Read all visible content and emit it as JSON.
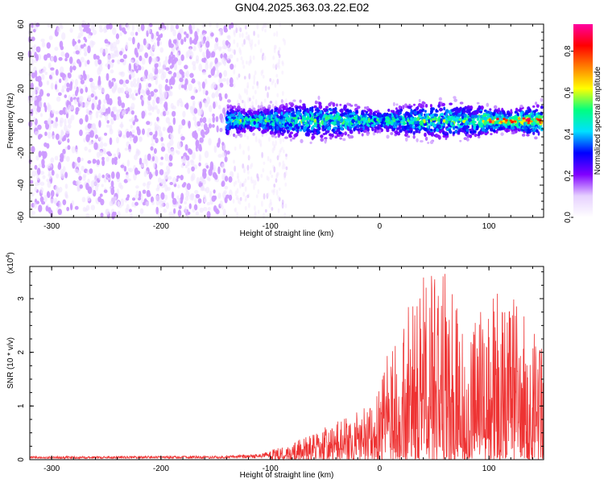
{
  "title": "GN04.2025.363.03.22.E02",
  "chart_data": [
    {
      "type": "heatmap",
      "xlabel": "Height of straight line (km)",
      "ylabel": "Frequency (Hz)",
      "xlim": [
        -320,
        150
      ],
      "ylim": [
        -60,
        60
      ],
      "xticks": [
        -300,
        -200,
        -100,
        0,
        100
      ],
      "yticks": [
        -60,
        -40,
        -20,
        0,
        20,
        40,
        60
      ],
      "colorbar": {
        "label": "Normalized spectral amplitude",
        "range": [
          0.0,
          0.93
        ],
        "ticks": [
          0.0,
          0.2,
          0.4,
          0.6,
          0.8
        ],
        "colormap": [
          "#ffffff",
          "#e6d0ff",
          "#8000ff",
          "#0000ff",
          "#00e0ff",
          "#00ff80",
          "#ffff00",
          "#ff8000",
          "#ff0000",
          "#ff00a0"
        ]
      },
      "regions": [
        {
          "x_range": [
            -320,
            -135
          ],
          "y_range": [
            -60,
            60
          ],
          "pattern": "scattered",
          "level": 0.05
        },
        {
          "x_range": [
            -135,
            -85
          ],
          "y_range": [
            -60,
            60
          ],
          "pattern": "sparse-faint",
          "level": 0.02
        },
        {
          "x_range": [
            -140,
            150
          ],
          "y_range": [
            -15,
            12
          ],
          "pattern": "dense-band",
          "level": 0.35
        },
        {
          "x_range": [
            100,
            150
          ],
          "y_range": [
            -3,
            3
          ],
          "pattern": "peak",
          "level": 0.9
        }
      ]
    },
    {
      "type": "line",
      "xlabel": "Height of straight line (km)",
      "ylabel": "SNR (10 * v/v)",
      "multiplier_label": "(x10",
      "multiplier_exp": "4",
      "multiplier_close": ")",
      "xlim": [
        -320,
        150
      ],
      "ylim": [
        0,
        3.6
      ],
      "xticks": [
        -300,
        -200,
        -100,
        0,
        100
      ],
      "yticks": [
        0,
        1,
        2,
        3
      ],
      "color": "#ee3333",
      "envelope": {
        "x": [
          -320,
          -150,
          -110,
          -90,
          -70,
          -50,
          -30,
          -10,
          0,
          20,
          40,
          60,
          80,
          100,
          120,
          140,
          150
        ],
        "y": [
          0.06,
          0.07,
          0.1,
          0.25,
          0.4,
          0.6,
          0.8,
          1.0,
          1.7,
          2.6,
          3.5,
          3.6,
          2.7,
          3.1,
          3.3,
          2.4,
          2.1
        ]
      }
    }
  ]
}
